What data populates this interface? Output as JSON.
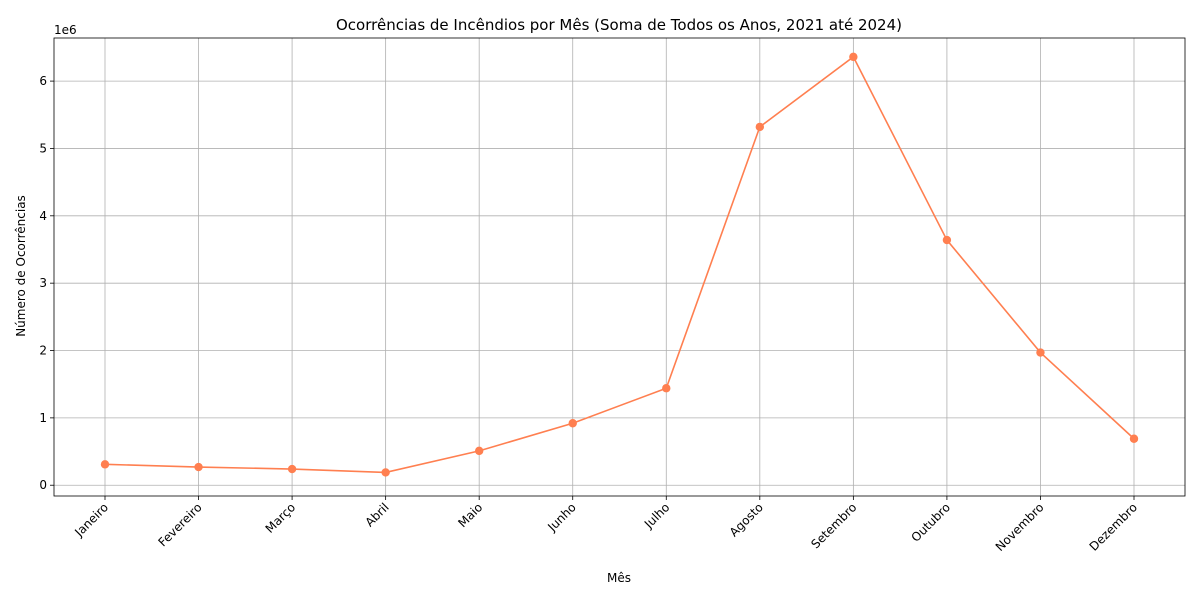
{
  "chart_data": {
    "type": "line",
    "title": "Ocorrências de Incêndios por Mês (Soma de Todos os Anos, 2021 até 2024)",
    "xlabel": "Mês",
    "ylabel": "Número de Ocorrências",
    "y_offset_label": "1e6",
    "categories": [
      "Janeiro",
      "Fevereiro",
      "Março",
      "Abril",
      "Maio",
      "Junho",
      "Julho",
      "Agosto",
      "Setembro",
      "Outubro",
      "Novembro",
      "Dezembro"
    ],
    "values": [
      310000,
      270000,
      240000,
      190000,
      510000,
      920000,
      1440000,
      5320000,
      6360000,
      3640000,
      1970000,
      690000
    ],
    "ylim": [
      -160000,
      6640000
    ],
    "y_ticks": [
      0,
      1000000,
      2000000,
      3000000,
      4000000,
      5000000,
      6000000
    ],
    "y_tick_labels": [
      "0",
      "1",
      "2",
      "3",
      "4",
      "5",
      "6"
    ],
    "line_color": "#ff7f50",
    "grid_color": "#b0b0b0",
    "grid": true,
    "x_tick_rotation": 45
  }
}
